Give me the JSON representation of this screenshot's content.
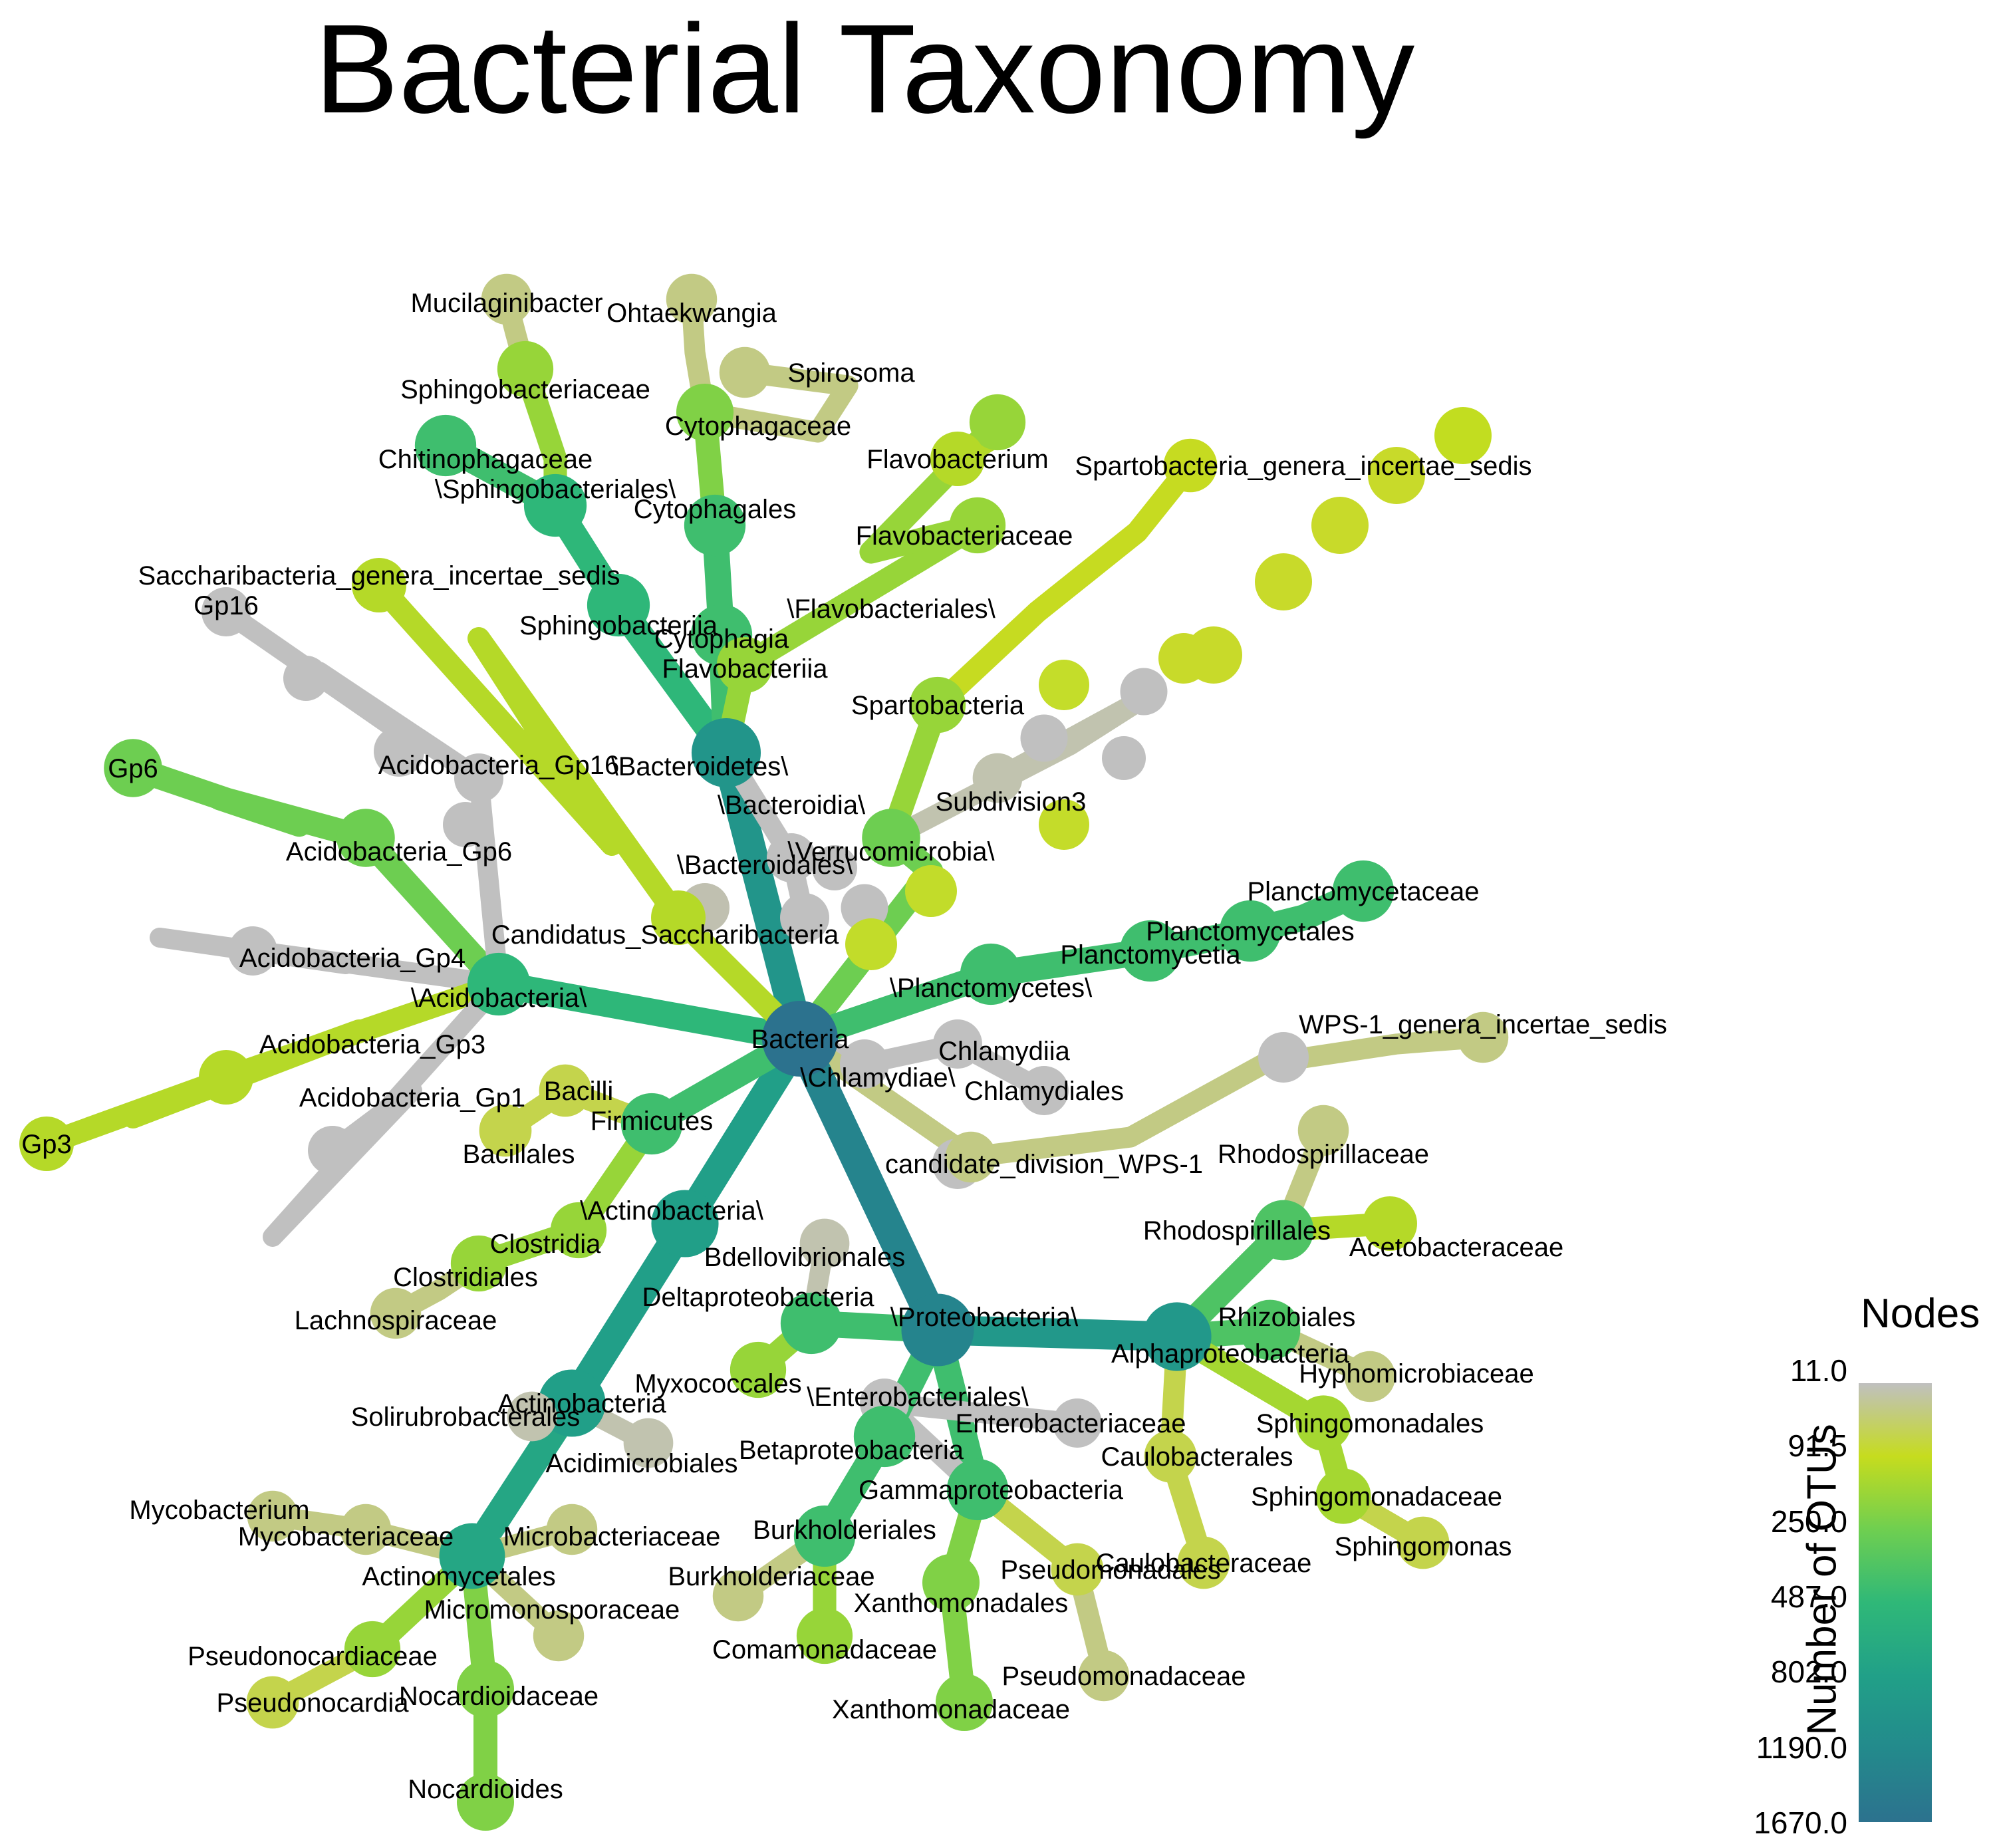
{
  "title": "Bacterial Taxonomy",
  "legend": {
    "title": "Nodes",
    "axis_label": "Number of OTUs",
    "ticks": [
      "11.0",
      "91.5",
      "250.0",
      "487.0",
      "802.0",
      "1190.0",
      "1670.0"
    ],
    "gradient": [
      "#c0c0c0",
      "#c6dc1e",
      "#6fcf50",
      "#2fb878",
      "#21a088",
      "#238a8c",
      "#2c728e"
    ]
  },
  "nodes": [
    {
      "id": "Bacteria",
      "label": "Bacteria",
      "otus": 1670
    },
    {
      "id": "Bacteroidetes",
      "label": "\\Bacteroidetes\\",
      "otus": 480,
      "parent": "Bacteria"
    },
    {
      "id": "Bacteroidia",
      "label": "\\Bacteroidia\\",
      "otus": 11,
      "parent": "Bacteroidetes"
    },
    {
      "id": "Bacteroidales",
      "label": "\\Bacteroidales\\",
      "otus": 11,
      "parent": "Bacteroidia"
    },
    {
      "id": "Sphingobacteriia",
      "label": "Sphingobacteriia",
      "otus": 140,
      "parent": "Bacteroidetes"
    },
    {
      "id": "Sphingobacteriales",
      "label": "\\Sphingobacteriales\\",
      "otus": 140,
      "parent": "Sphingobacteriia"
    },
    {
      "id": "Chitinophagaceae",
      "label": "Chitinophagaceae",
      "otus": 110,
      "parent": "Sphingobacteriales"
    },
    {
      "id": "Sphingobacteriaceae",
      "label": "Sphingobacteriaceae",
      "otus": 40,
      "parent": "Sphingobacteriales"
    },
    {
      "id": "Mucilaginibacter",
      "label": "Mucilaginibacter",
      "otus": 15,
      "parent": "Sphingobacteriaceae"
    },
    {
      "id": "Cytophagia",
      "label": "Cytophagia",
      "otus": 110,
      "parent": "Bacteroidetes"
    },
    {
      "id": "Cytophagales",
      "label": "Cytophagales",
      "otus": 110,
      "parent": "Cytophagia"
    },
    {
      "id": "Cytophagaceae",
      "label": "Cytophagaceae",
      "otus": 50,
      "parent": "Cytophagales"
    },
    {
      "id": "Ohtaekwangia",
      "label": "Ohtaekwangia",
      "otus": 15,
      "parent": "Cytophagaceae"
    },
    {
      "id": "Spirosoma",
      "label": "Spirosoma",
      "otus": 15,
      "parent": "Cytophagaceae"
    },
    {
      "id": "Flavobacteriia",
      "label": "Flavobacteriia",
      "otus": 40,
      "parent": "Bacteroidetes"
    },
    {
      "id": "Flavobacteriales",
      "label": "\\Flavobacteriales\\",
      "otus": 40,
      "parent": "Flavobacteriia"
    },
    {
      "id": "Flavobacteriaceae",
      "label": "Flavobacteriaceae",
      "otus": 40,
      "parent": "Flavobacteriales"
    },
    {
      "id": "Flavobacterium",
      "label": "Flavobacterium",
      "otus": 30,
      "parent": "Flavobacteriaceae"
    },
    {
      "id": "Verrucomicrobia",
      "label": "\\Verrucomicrobia\\",
      "otus": 60,
      "parent": "Bacteria"
    },
    {
      "id": "Spartobacteria",
      "label": "Spartobacteria",
      "otus": 40,
      "parent": "Verrucomicrobia"
    },
    {
      "id": "Spartobacteria_gis",
      "label": "Spartobacteria_genera_incertae_sedis",
      "otus": 25,
      "parent": "Spartobacteria"
    },
    {
      "id": "Subdivision3",
      "label": "Subdivision3",
      "otus": 12,
      "parent": "Verrucomicrobia"
    },
    {
      "id": "Planctomycetes",
      "label": "\\Planctomycetes\\",
      "otus": 110,
      "parent": "Bacteria"
    },
    {
      "id": "Planctomycetia",
      "label": "Planctomycetia",
      "otus": 110,
      "parent": "Planctomycetes"
    },
    {
      "id": "Planctomycetales",
      "label": "Planctomycetales",
      "otus": 110,
      "parent": "Planctomycetia"
    },
    {
      "id": "Planctomycetaceae",
      "label": "Planctomycetaceae",
      "otus": 110,
      "parent": "Planctomycetales"
    },
    {
      "id": "Chlamydiae",
      "label": "\\Chlamydiae\\",
      "otus": 11,
      "parent": "Bacteria"
    },
    {
      "id": "Chlamydiia",
      "label": "Chlamydiia",
      "otus": 11,
      "parent": "Chlamydiae"
    },
    {
      "id": "Chlamydiales",
      "label": "Chlamydiales",
      "otus": 11,
      "parent": "Chlamydiia"
    },
    {
      "id": "WPS1",
      "label": "candidate_division_WPS-1",
      "otus": 15,
      "parent": "Bacteria"
    },
    {
      "id": "WPS1_gis",
      "label": "WPS-1_genera_incertae_sedis",
      "otus": 15,
      "parent": "WPS1"
    },
    {
      "id": "Proteobacteria",
      "label": "\\Proteobacteria\\",
      "otus": 900,
      "parent": "Bacteria"
    },
    {
      "id": "Alphaproteobacteria",
      "label": "Alphaproteobacteria",
      "otus": 430,
      "parent": "Proteobacteria"
    },
    {
      "id": "Rhodospirillales",
      "label": "Rhodospirillales",
      "otus": 90,
      "parent": "Alphaproteobacteria"
    },
    {
      "id": "Rhodospirillaceae",
      "label": "Rhodospirillaceae",
      "otus": 15,
      "parent": "Rhodospirillales"
    },
    {
      "id": "Acetobacteraceae",
      "label": "Acetobacteraceae",
      "otus": 30,
      "parent": "Rhodospirillales"
    },
    {
      "id": "Rhizobiales",
      "label": "Rhizobiales",
      "otus": 90,
      "parent": "Alphaproteobacteria"
    },
    {
      "id": "Hyphomicrobiaceae",
      "label": "Hyphomicrobiaceae",
      "otus": 15,
      "parent": "Rhizobiales"
    },
    {
      "id": "Sphingomonadales",
      "label": "Sphingomonadales",
      "otus": 35,
      "parent": "Alphaproteobacteria"
    },
    {
      "id": "Sphingomonadaceae",
      "label": "Sphingomonadaceae",
      "otus": 35,
      "parent": "Sphingomonadales"
    },
    {
      "id": "Sphingomonas",
      "label": "Sphingomonas",
      "otus": 20,
      "parent": "Sphingomonadaceae"
    },
    {
      "id": "Caulobacterales",
      "label": "Caulobacterales",
      "otus": 20,
      "parent": "Alphaproteobacteria"
    },
    {
      "id": "Caulobacteraceae",
      "label": "Caulobacteraceae",
      "otus": 20,
      "parent": "Caulobacterales"
    },
    {
      "id": "Gammaproteobacteria",
      "label": "Gammaproteobacteria",
      "otus": 110,
      "parent": "Proteobacteria"
    },
    {
      "id": "Enterobacteriales",
      "label": "\\Enterobacteriales\\",
      "otus": 11,
      "parent": "Gammaproteobacteria"
    },
    {
      "id": "Enterobacteriaceae",
      "label": "Enterobacteriaceae",
      "otus": 11,
      "parent": "Enterobacteriales"
    },
    {
      "id": "Pseudomonadales",
      "label": "Pseudomonadales",
      "otus": 20,
      "parent": "Gammaproteobacteria"
    },
    {
      "id": "Pseudomonadaceae",
      "label": "Pseudomonadaceae",
      "otus": 15,
      "parent": "Pseudomonadales"
    },
    {
      "id": "Xanthomonadales",
      "label": "Xanthomonadales",
      "otus": 50,
      "parent": "Gammaproteobacteria"
    },
    {
      "id": "Xanthomonadaceae",
      "label": "Xanthomonadaceae",
      "otus": 50,
      "parent": "Xanthomonadales"
    },
    {
      "id": "Betaproteobacteria",
      "label": "Betaproteobacteria",
      "otus": 110,
      "parent": "Proteobacteria"
    },
    {
      "id": "Burkholderiales",
      "label": "Burkholderiales",
      "otus": 110,
      "parent": "Betaproteobacteria"
    },
    {
      "id": "Burkholderiaceae",
      "label": "Burkholderiaceae",
      "otus": 15,
      "parent": "Burkholderiales"
    },
    {
      "id": "Comamonadaceae",
      "label": "Comamonadaceae",
      "otus": 40,
      "parent": "Burkholderiales"
    },
    {
      "id": "Deltaproteobacteria",
      "label": "Deltaproteobacteria",
      "otus": 110,
      "parent": "Proteobacteria"
    },
    {
      "id": "Myxococcales",
      "label": "Myxococcales",
      "otus": 40,
      "parent": "Deltaproteobacteria"
    },
    {
      "id": "Bdellovibrionales",
      "label": "Bdellovibrionales",
      "otus": 12,
      "parent": "Deltaproteobacteria"
    },
    {
      "id": "Actinobacteria_phylum",
      "label": "\\Actinobacteria\\",
      "otus": 330,
      "parent": "Bacteria"
    },
    {
      "id": "Actinobacteria",
      "label": "Actinobacteria",
      "otus": 330,
      "parent": "Actinobacteria_phylum"
    },
    {
      "id": "Acidimicrobiales",
      "label": "Acidimicrobiales",
      "otus": 12,
      "parent": "Actinobacteria"
    },
    {
      "id": "Solirubrobacterales",
      "label": "Solirubrobacterales",
      "otus": 12,
      "parent": "Actinobacteria"
    },
    {
      "id": "Actinomycetales",
      "label": "Actinomycetales",
      "otus": 250,
      "parent": "Actinobacteria"
    },
    {
      "id": "Mycobacteriaceae",
      "label": "Mycobacteriaceae",
      "otus": 15,
      "parent": "Actinomycetales"
    },
    {
      "id": "Mycobacterium",
      "label": "Mycobacterium",
      "otus": 15,
      "parent": "Mycobacteriaceae"
    },
    {
      "id": "Microbacteriaceae",
      "label": "Microbacteriaceae",
      "otus": 15,
      "parent": "Actinomycetales"
    },
    {
      "id": "Micromonosporaceae",
      "label": "Micromonosporaceae",
      "otus": 15,
      "parent": "Actinomycetales"
    },
    {
      "id": "Pseudonocardiaceae",
      "label": "Pseudonocardiaceae",
      "otus": 40,
      "parent": "Actinomycetales"
    },
    {
      "id": "Pseudonocardia",
      "label": "Pseudonocardia",
      "otus": 20,
      "parent": "Pseudonocardiaceae"
    },
    {
      "id": "Nocardioidaceae",
      "label": "Nocardioidaceae",
      "otus": 50,
      "parent": "Actinomycetales"
    },
    {
      "id": "Nocardioides",
      "label": "Nocardioides",
      "otus": 50,
      "parent": "Nocardioidaceae"
    },
    {
      "id": "Firmicutes",
      "label": "Firmicutes",
      "otus": 110,
      "parent": "Bacteria"
    },
    {
      "id": "Bacilli",
      "label": "Bacilli",
      "otus": 20,
      "parent": "Firmicutes"
    },
    {
      "id": "Bacillales",
      "label": "Bacillales",
      "otus": 20,
      "parent": "Bacilli"
    },
    {
      "id": "Clostridia",
      "label": "Clostridia",
      "otus": 40,
      "parent": "Firmicutes"
    },
    {
      "id": "Clostridiales",
      "label": "Clostridiales",
      "otus": 40,
      "parent": "Clostridia"
    },
    {
      "id": "Lachnospiraceae",
      "label": "Lachnospiraceae",
      "otus": 15,
      "parent": "Clostridiales"
    },
    {
      "id": "Acidobacteria",
      "label": "\\Acidobacteria\\",
      "otus": 140,
      "parent": "Bacteria"
    },
    {
      "id": "Acidobacteria_Gp4",
      "label": "Acidobacteria_Gp4",
      "otus": 11,
      "parent": "Acidobacteria"
    },
    {
      "id": "Acidobacteria_Gp6",
      "label": "Acidobacteria_Gp6",
      "otus": 60,
      "parent": "Acidobacteria"
    },
    {
      "id": "Gp6",
      "label": "Gp6",
      "otus": 60,
      "parent": "Acidobacteria_Gp6"
    },
    {
      "id": "Acidobacteria_Gp16",
      "label": "Acidobacteria_Gp16",
      "otus": 11,
      "parent": "Acidobacteria"
    },
    {
      "id": "Gp16",
      "label": "Gp16",
      "otus": 11,
      "parent": "Acidobacteria_Gp16"
    },
    {
      "id": "Acidobacteria_Gp3",
      "label": "Acidobacteria_Gp3",
      "otus": 30,
      "parent": "Acidobacteria"
    },
    {
      "id": "Gp3",
      "label": "Gp3",
      "otus": 30,
      "parent": "Acidobacteria_Gp3"
    },
    {
      "id": "Acidobacteria_Gp1",
      "label": "Acidobacteria_Gp1",
      "otus": 11,
      "parent": "Acidobacteria"
    },
    {
      "id": "Saccharibacteria",
      "label": "Candidatus_Saccharibacteria",
      "otus": 30,
      "parent": "Bacteria"
    },
    {
      "id": "Saccharibacteria_gis",
      "label": "Saccharibacteria_genera_incertae_sedis",
      "otus": 30,
      "parent": "Saccharibacteria"
    }
  ]
}
